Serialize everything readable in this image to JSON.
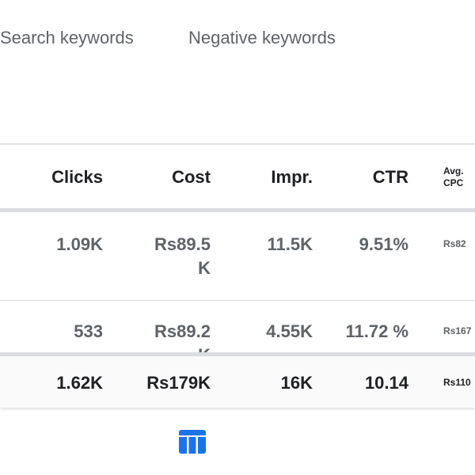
{
  "tabs": [
    {
      "label": "Search keywords"
    },
    {
      "label": "Negative keywords"
    }
  ],
  "table": {
    "headers": [
      "Clicks",
      "Cost",
      "Impr.",
      "CTR",
      "Avg. CPC"
    ],
    "rows": [
      [
        "1.09K",
        "Rs89.5 K",
        "11.5K",
        "9.51%",
        "Rs82"
      ],
      [
        "533",
        "Rs89.2 K",
        "4.55K",
        "11.72 %",
        "Rs167"
      ]
    ],
    "totals": [
      "1.62K",
      "Rs179K",
      "16K",
      "10.14",
      "Rs110"
    ]
  },
  "colors": {
    "accent": "#1a73e8"
  },
  "bottom_icon": "table-columns-icon"
}
